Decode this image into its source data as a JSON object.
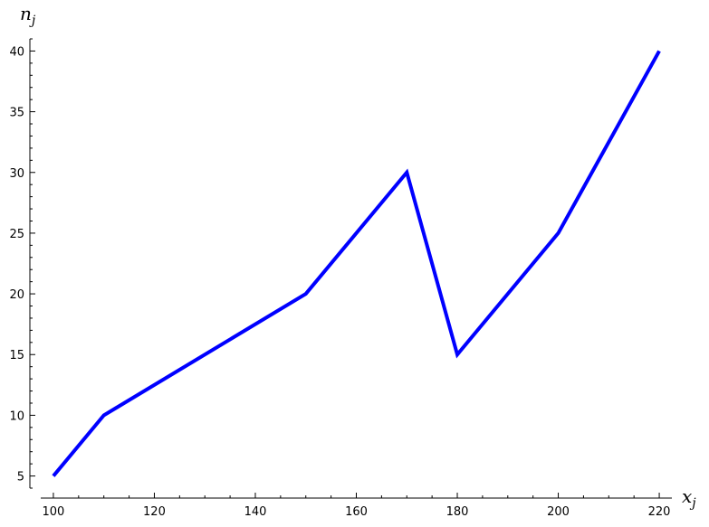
{
  "chart_data": {
    "type": "line",
    "xlabel": "x",
    "xlabel_sub": "j",
    "ylabel": "n",
    "ylabel_sub": "j",
    "xlim": [
      97.5,
      222.5
    ],
    "ylim": [
      4,
      41
    ],
    "x_ticks": [
      100,
      120,
      140,
      160,
      180,
      200,
      220
    ],
    "y_ticks": [
      5,
      10,
      15,
      20,
      25,
      30,
      35,
      40
    ],
    "x_minor_step": 5,
    "y_minor_step": 1,
    "grid": false,
    "series": [
      {
        "color": "#0000ff",
        "x": [
          100,
          110,
          150,
          170,
          180,
          200,
          220
        ],
        "y": [
          5,
          10,
          20,
          30,
          15,
          25,
          40
        ]
      }
    ]
  }
}
